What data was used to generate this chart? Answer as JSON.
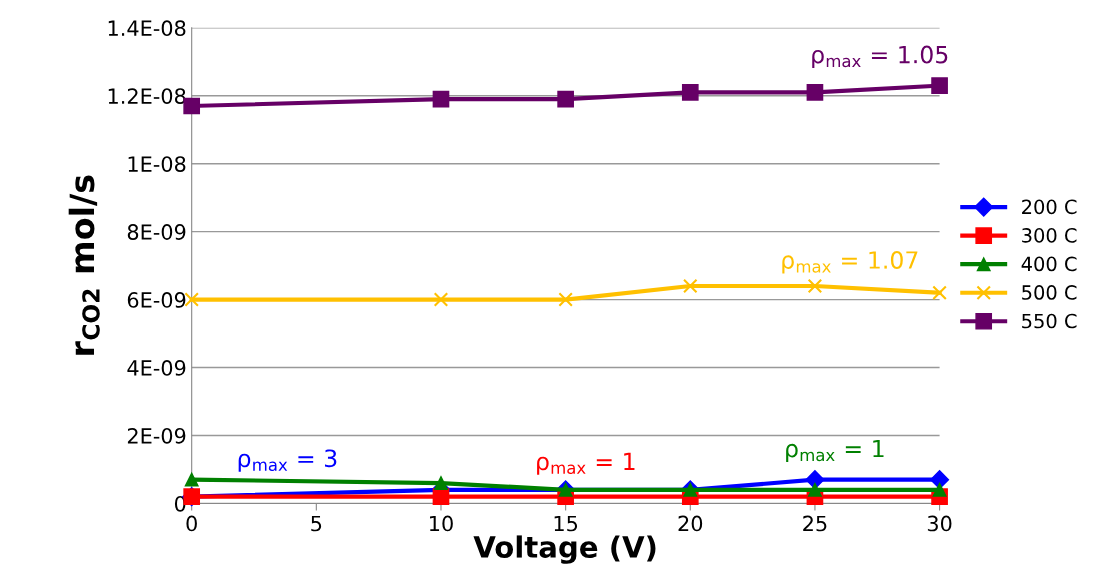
{
  "chart_data": {
    "type": "line",
    "xlabel": "Voltage (V)",
    "ylabel": "r$_{CO2}$ mol/s",
    "x": [
      0,
      10,
      15,
      20,
      25,
      30
    ],
    "series": [
      {
        "name": "200 C",
        "color": "#0000ff",
        "marker": "diamond",
        "values": [
          2e-10,
          4e-10,
          4e-10,
          4e-10,
          7e-10,
          7e-10
        ]
      },
      {
        "name": "300 C",
        "color": "#ff0000",
        "marker": "square",
        "values": [
          2e-10,
          2e-10,
          2e-10,
          2e-10,
          2e-10,
          2e-10
        ]
      },
      {
        "name": "400 C",
        "color": "#008000",
        "marker": "triangle",
        "values": [
          7e-10,
          6e-10,
          4e-10,
          4e-10,
          4e-10,
          4e-10
        ]
      },
      {
        "name": "500 C",
        "color": "#ffc000",
        "marker": "cross",
        "values": [
          6e-09,
          6e-09,
          6e-09,
          6.4e-09,
          6.4e-09,
          6.2e-09
        ]
      },
      {
        "name": "550 C",
        "color": "#660066",
        "marker": "square",
        "values": [
          1.17e-08,
          1.19e-08,
          1.19e-08,
          1.21e-08,
          1.21e-08,
          1.23e-08
        ]
      }
    ],
    "annotations": [
      "ρ$_{max}$ = 3",
      "ρ$_{max}$ = 1",
      "ρ$_{max}$ = 1",
      "ρ$_{max}$ = 1.07",
      "ρ$_{max}$ = 1.05"
    ],
    "xlim": [
      0,
      30
    ],
    "xticks": [
      0,
      5,
      10,
      15,
      20,
      25,
      30
    ],
    "ylim": [
      0,
      1.4e-08
    ],
    "yticks": [
      0,
      {
        "value": 2e-09,
        "label": "2E-09"
      },
      {
        "value": 4e-09,
        "label": "4E-09"
      },
      {
        "value": 6e-09,
        "label": "6E-09"
      },
      {
        "value": 8e-09,
        "label": "8E-09"
      },
      {
        "value": 1e-08,
        "label": "1E-08"
      },
      {
        "value": 1.2e-08,
        "label": "1.2E-08"
      },
      {
        "value": 1.4e-08,
        "label": "1.4E-08"
      }
    ],
    "grid": "y",
    "legend": "right"
  }
}
